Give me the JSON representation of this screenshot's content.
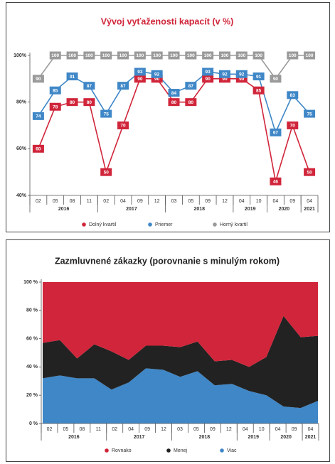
{
  "chart_data": [
    {
      "type": "line",
      "title": "Vývoj vyťaženosti kapacít (v %)",
      "categories": [
        "02",
        "05",
        "08",
        "11",
        "02",
        "04",
        "09",
        "12",
        "03",
        "05",
        "09",
        "12",
        "04",
        "10",
        "04",
        "09",
        "04"
      ],
      "groups": [
        {
          "label": "2016",
          "count": 4
        },
        {
          "label": "2017",
          "count": 4
        },
        {
          "label": "2018",
          "count": 4
        },
        {
          "label": "2019",
          "count": 2
        },
        {
          "label": "2020",
          "count": 2
        },
        {
          "label": "2021",
          "count": 1
        }
      ],
      "ylim": [
        40,
        100
      ],
      "yticks": [
        {
          "value": 40,
          "label": "40%"
        },
        {
          "value": 60,
          "label": "60%"
        },
        {
          "value": 80,
          "label": "80%"
        },
        {
          "value": 100,
          "label": "100%"
        }
      ],
      "grid": false,
      "series": [
        {
          "name": "Dolný kvartil",
          "color": "#d0253a",
          "values": [
            60,
            78,
            80,
            80,
            50,
            70,
            90,
            90,
            80,
            80,
            90,
            90,
            90,
            85,
            46,
            70,
            50
          ]
        },
        {
          "name": "Priemer",
          "color": "#3f87c7",
          "values": [
            74,
            85,
            91,
            87,
            75,
            87,
            93,
            92,
            84,
            87,
            93,
            92,
            92,
            91,
            67,
            83,
            75
          ]
        },
        {
          "name": "Horný kvartil",
          "color": "#9a9a9a",
          "values": [
            90,
            100,
            100,
            100,
            100,
            100,
            100,
            100,
            100,
            100,
            100,
            100,
            100,
            100,
            90,
            100,
            100
          ]
        }
      ]
    },
    {
      "type": "area",
      "stacked": true,
      "title": "Zazmluvnené zákazky (porovnanie s minulým rokom)",
      "categories": [
        "02",
        "05",
        "08",
        "11",
        "02",
        "04",
        "09",
        "12",
        "03",
        "05",
        "09",
        "12",
        "04",
        "10",
        "04",
        "09",
        "04"
      ],
      "groups": [
        {
          "label": "2016",
          "count": 4
        },
        {
          "label": "2017",
          "count": 4
        },
        {
          "label": "2018",
          "count": 4
        },
        {
          "label": "2019",
          "count": 2
        },
        {
          "label": "2020",
          "count": 2
        },
        {
          "label": "2021",
          "count": 1
        }
      ],
      "ylim": [
        0,
        100
      ],
      "yticks": [
        {
          "value": 0,
          "label": "0 %"
        },
        {
          "value": 20,
          "label": "20 %"
        },
        {
          "value": 40,
          "label": "40 %"
        },
        {
          "value": 60,
          "label": "60 %"
        },
        {
          "value": 80,
          "label": "80 %"
        },
        {
          "value": 100,
          "label": "100 %"
        }
      ],
      "grid": false,
      "series": [
        {
          "name": "Viac",
          "color": "#3f87c7",
          "values": [
            32,
            34,
            32,
            32,
            24,
            29,
            39,
            38,
            33,
            37,
            27,
            28,
            23,
            20,
            12,
            11,
            16
          ]
        },
        {
          "name": "Menej",
          "color": "#222222",
          "values": [
            25,
            25,
            14,
            24,
            27,
            16,
            16,
            17,
            21,
            21,
            17,
            17,
            17,
            27,
            64,
            50,
            46
          ]
        },
        {
          "name": "Rovnako",
          "color": "#d0253a",
          "values": [
            43,
            41,
            54,
            44,
            49,
            55,
            45,
            45,
            46,
            42,
            56,
            55,
            60,
            53,
            24,
            39,
            38
          ]
        }
      ],
      "legend_order": [
        "Rovnako",
        "Menej",
        "Viac"
      ]
    }
  ]
}
